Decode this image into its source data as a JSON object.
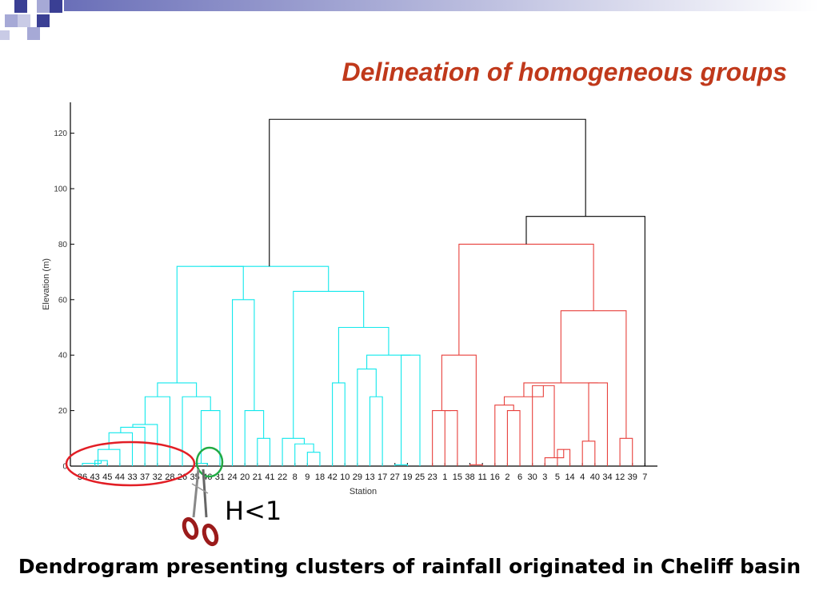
{
  "slide": {
    "title": "Delineation of homogeneous groups",
    "note": "H<1",
    "caption": "Dendrogram presenting clusters of rainfall originated in Cheliff basin"
  },
  "colors": {
    "title": "#c0391b",
    "cluster_cyan": "#11e8ec",
    "cluster_red": "#e8403c",
    "top_links": "#000000",
    "cut_circle_red": "#e21e25",
    "cut_circle_green": "#22aa44",
    "deco_blue": "#3a3f94",
    "deco_light": "#a6a9d6"
  },
  "icons": {
    "cut": "scissors-icon"
  },
  "chart_data": {
    "type": "dendrogram",
    "ylabel": "Elevation (m)",
    "xlabel": "Station",
    "ylim": [
      0,
      130
    ],
    "yticks": [
      0,
      20,
      40,
      60,
      80,
      100,
      120
    ],
    "leaves": [
      "36",
      "43",
      "45",
      "44",
      "33",
      "37",
      "32",
      "28",
      "26",
      "35",
      "46",
      "31",
      "24",
      "20",
      "21",
      "41",
      "22",
      "8",
      "9",
      "18",
      "42",
      "10",
      "29",
      "13",
      "17",
      "27",
      "19",
      "25",
      "23",
      "1",
      "15",
      "38",
      "11",
      "16",
      "2",
      "6",
      "30",
      "3",
      "5",
      "14",
      "4",
      "40",
      "34",
      "12",
      "39",
      "7"
    ],
    "links": [
      {
        "a": 1,
        "b": 2,
        "h": 2,
        "cluster": "cyan"
      },
      {
        "a": 0,
        "b": 1.5,
        "h": 1,
        "cluster": "cyan"
      },
      {
        "a": 1.25,
        "b": 3,
        "h": 6,
        "cluster": "cyan"
      },
      {
        "a": 2.125,
        "b": 4,
        "h": 12,
        "cluster": "cyan"
      },
      {
        "a": 3.063,
        "b": 5,
        "h": 14,
        "cluster": "cyan"
      },
      {
        "a": 4.031,
        "b": 6,
        "h": 15,
        "cluster": "cyan"
      },
      {
        "a": 5.016,
        "b": 7,
        "h": 25,
        "cluster": "cyan"
      },
      {
        "a": 9,
        "b": 10,
        "h": 1,
        "cluster": "cyan"
      },
      {
        "a": 9.5,
        "b": 11,
        "h": 20,
        "cluster": "cyan"
      },
      {
        "a": 8,
        "b": 10.25,
        "h": 25,
        "cluster": "cyan"
      },
      {
        "a": 6.008,
        "b": 9.125,
        "h": 30,
        "cluster": "cyan"
      },
      {
        "a": 14,
        "b": 15,
        "h": 10,
        "cluster": "cyan"
      },
      {
        "a": 13,
        "b": 14.5,
        "h": 20,
        "cluster": "cyan"
      },
      {
        "a": 12,
        "b": 13.75,
        "h": 60,
        "cluster": "cyan"
      },
      {
        "a": 7.567,
        "b": 12.875,
        "h": 72,
        "cluster": "cyan"
      },
      {
        "a": 18,
        "b": 19,
        "h": 5,
        "cluster": "cyan"
      },
      {
        "a": 17,
        "b": 18.5,
        "h": 8,
        "cluster": "cyan"
      },
      {
        "a": 16,
        "b": 17.75,
        "h": 10,
        "cluster": "cyan"
      },
      {
        "a": 23,
        "b": 24,
        "h": 25,
        "cluster": "cyan"
      },
      {
        "a": 22,
        "b": 23.5,
        "h": 35,
        "cluster": "cyan"
      },
      {
        "a": 25,
        "b": 26,
        "h": 0.5,
        "cluster": "cyan"
      },
      {
        "a": 25.5,
        "b": 27,
        "h": 40,
        "cluster": "cyan"
      },
      {
        "a": 22.75,
        "b": 26.25,
        "h": 40,
        "cluster": "cyan"
      },
      {
        "a": 20,
        "b": 21,
        "h": 30,
        "cluster": "cyan"
      },
      {
        "a": 20.5,
        "b": 24.5,
        "h": 50,
        "cluster": "cyan"
      },
      {
        "a": 16.875,
        "b": 22.5,
        "h": 63,
        "cluster": "cyan"
      },
      {
        "a": 10.221,
        "b": 19.688,
        "h": 72,
        "cluster": "cyan"
      },
      {
        "a": 29,
        "b": 30,
        "h": 20,
        "cluster": "red"
      },
      {
        "a": 28,
        "b": 29.5,
        "h": 20,
        "cluster": "red"
      },
      {
        "a": 31,
        "b": 32,
        "h": 0.5,
        "cluster": "red"
      },
      {
        "a": 28.75,
        "b": 31.5,
        "h": 40,
        "cluster": "red"
      },
      {
        "a": 38,
        "b": 39,
        "h": 6,
        "cluster": "red"
      },
      {
        "a": 37,
        "b": 38.5,
        "h": 3,
        "cluster": "red"
      },
      {
        "a": 34,
        "b": 35,
        "h": 20,
        "cluster": "red"
      },
      {
        "a": 33,
        "b": 34.5,
        "h": 22,
        "cluster": "red"
      },
      {
        "a": 36,
        "b": 37.75,
        "h": 29,
        "cluster": "red"
      },
      {
        "a": 33.75,
        "b": 36.875,
        "h": 25,
        "cluster": "red"
      },
      {
        "a": 40,
        "b": 41,
        "h": 9,
        "cluster": "red"
      },
      {
        "a": 40.5,
        "b": 42,
        "h": 30,
        "cluster": "red"
      },
      {
        "a": 35.313,
        "b": 41.25,
        "h": 30,
        "cluster": "red"
      },
      {
        "a": 43,
        "b": 44,
        "h": 10,
        "cluster": "red"
      },
      {
        "a": 38.281,
        "b": 43.5,
        "h": 56,
        "cluster": "red"
      },
      {
        "a": 30.125,
        "b": 40.891,
        "h": 80,
        "cluster": "red"
      },
      {
        "a": 35.508,
        "b": 45,
        "h": 90,
        "cluster": "black"
      },
      {
        "a": 14.955,
        "b": 40.254,
        "h": 125,
        "cluster": "black"
      }
    ]
  }
}
